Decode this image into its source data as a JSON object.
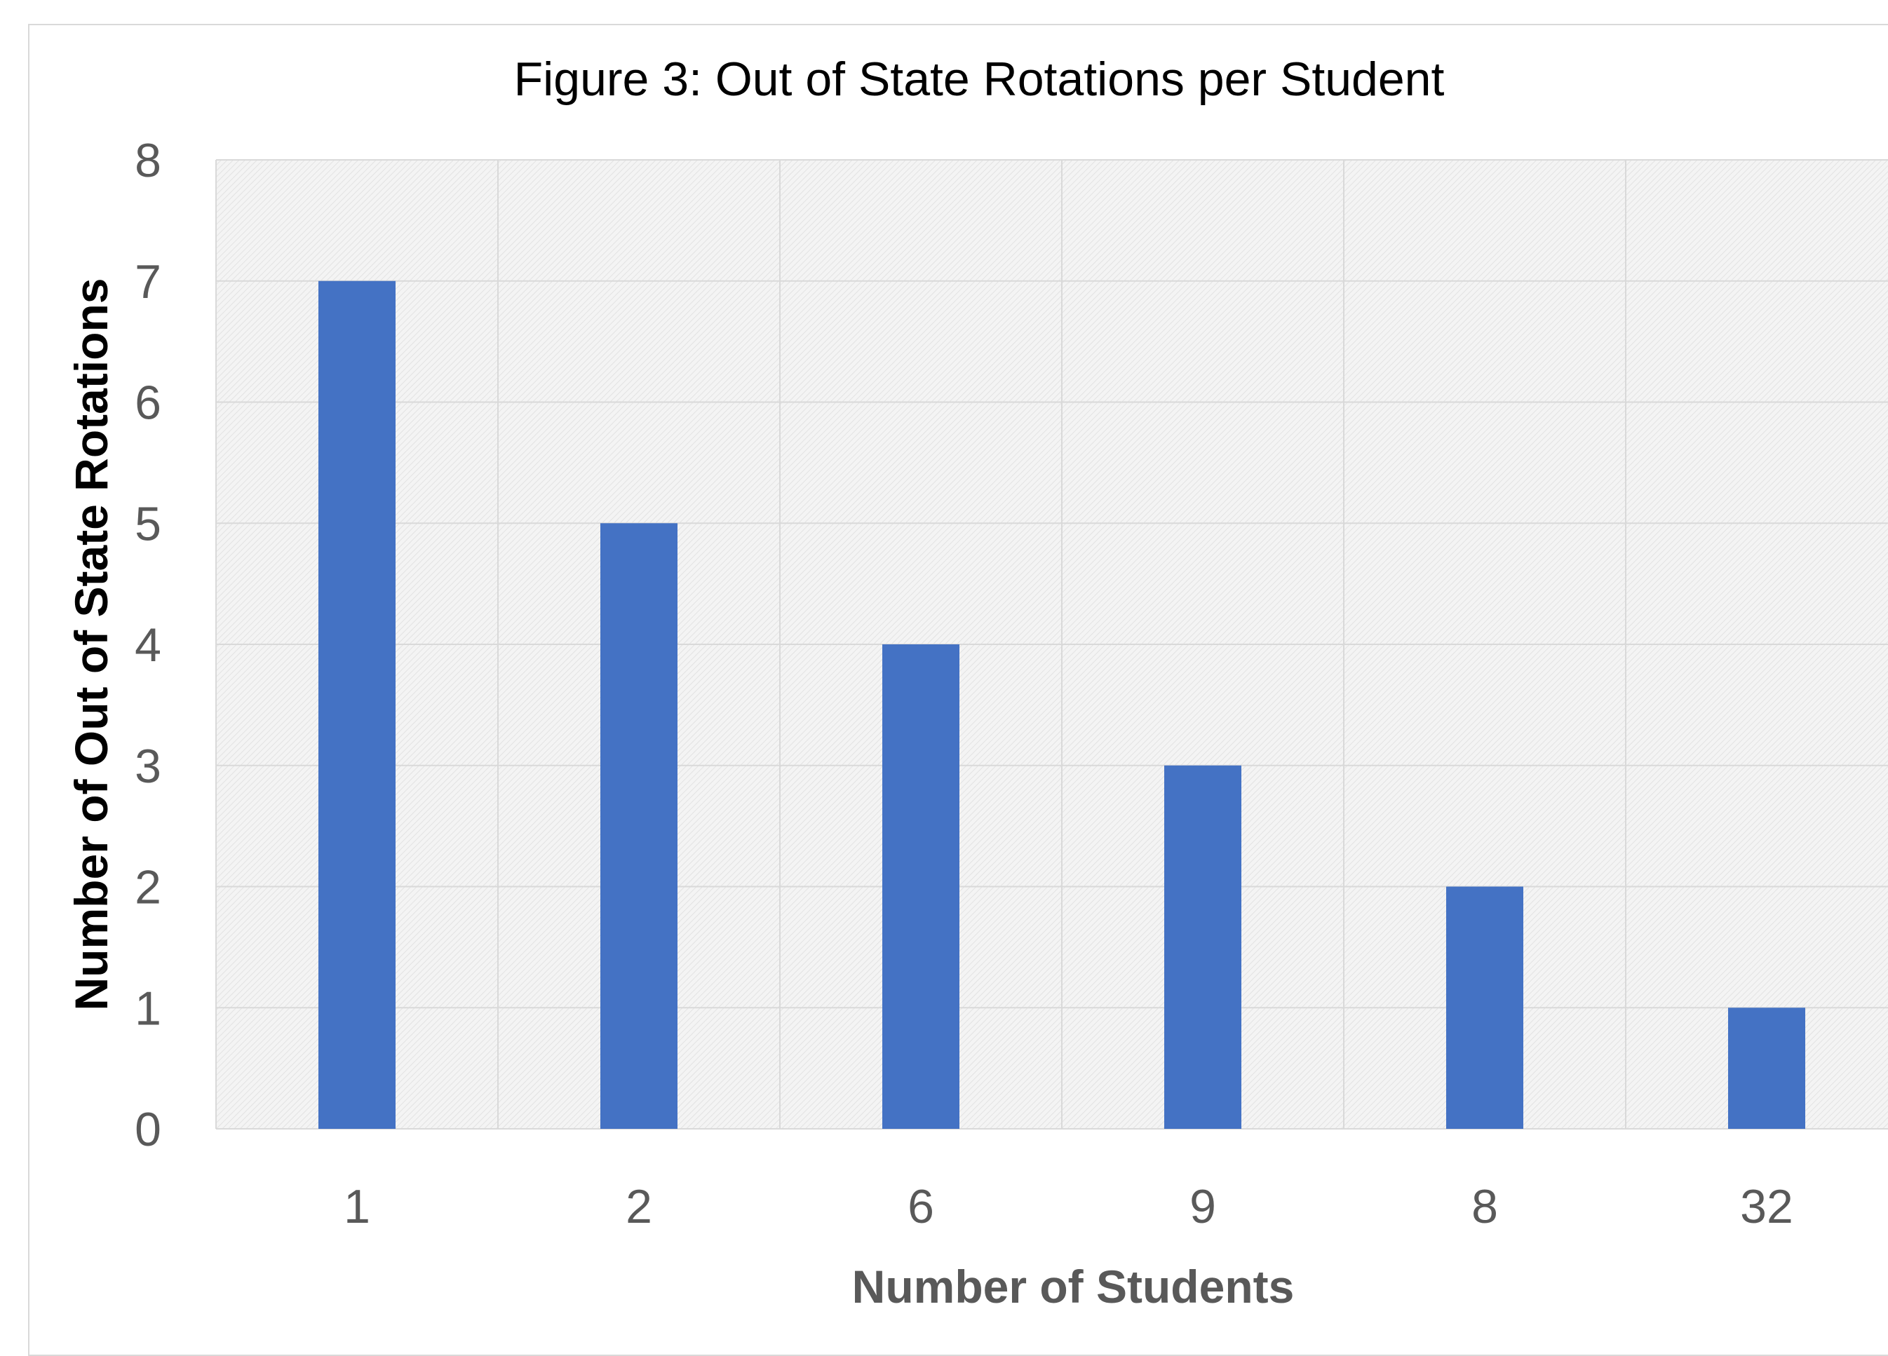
{
  "chart_data": {
    "type": "bar",
    "title": "Figure 3: Out of State Rotations per Student",
    "xlabel": "Number of Students",
    "ylabel": "Number of Out of State Rotations",
    "categories": [
      "1",
      "2",
      "6",
      "9",
      "8",
      "32"
    ],
    "values": [
      7,
      5,
      4,
      3,
      2,
      1
    ],
    "ylim": [
      0,
      8
    ],
    "yticks": [
      "0",
      "1",
      "2",
      "3",
      "4",
      "5",
      "6",
      "7",
      "8"
    ],
    "grid": true,
    "legend": "none",
    "bar_color": "#4472c4",
    "plot_background": "#f2f2f2",
    "gridline_color": "#d9d9d9"
  }
}
